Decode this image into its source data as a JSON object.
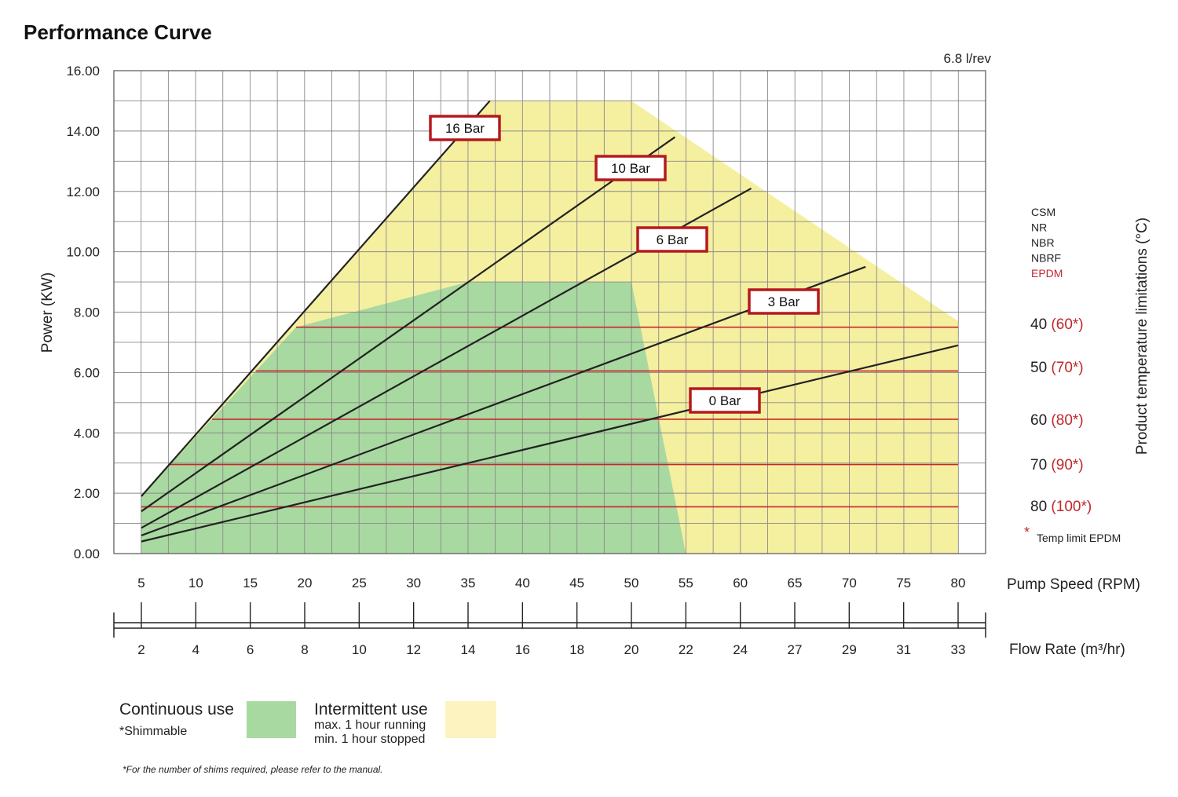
{
  "title": "Performance Curve",
  "displacement": "6.8 l/rev",
  "chart_data": {
    "type": "line",
    "title": "Performance Curve",
    "ylabel": "Power (KW)",
    "xlabel": "Pump Speed (RPM)",
    "x2label": "Flow Rate (m³/hr)",
    "ylim": [
      0,
      16
    ],
    "xlim": [
      5,
      80
    ],
    "y_ticks": [
      "0.00",
      "2.00",
      "4.00",
      "6.00",
      "8.00",
      "10.00",
      "12.00",
      "14.00",
      "16.00"
    ],
    "x_ticks": [
      "5",
      "10",
      "15",
      "20",
      "25",
      "30",
      "35",
      "40",
      "45",
      "50",
      "55",
      "60",
      "65",
      "70",
      "75",
      "80"
    ],
    "flow_ticks": [
      "2",
      "4",
      "6",
      "8",
      "10",
      "12",
      "14",
      "16",
      "18",
      "20",
      "22",
      "24",
      "27",
      "29",
      "31",
      "33"
    ],
    "grid": true,
    "series": [
      {
        "name": "16 Bar",
        "points": [
          [
            5,
            1.9
          ],
          [
            37,
            15.0
          ]
        ]
      },
      {
        "name": "10 Bar",
        "points": [
          [
            5,
            1.4
          ],
          [
            54,
            13.8
          ]
        ]
      },
      {
        "name": "6 Bar",
        "points": [
          [
            5,
            0.85
          ],
          [
            61,
            12.1
          ]
        ]
      },
      {
        "name": "3 Bar",
        "points": [
          [
            5,
            0.6
          ],
          [
            71.5,
            9.5
          ]
        ]
      },
      {
        "name": "0 Bar",
        "points": [
          [
            5,
            0.4
          ],
          [
            80,
            6.9
          ]
        ]
      }
    ],
    "regions": [
      {
        "name": "Intermittent use",
        "color": "#f5efa0",
        "points": [
          [
            5,
            0
          ],
          [
            5,
            1.9
          ],
          [
            37,
            15.0
          ],
          [
            50,
            15.0
          ],
          [
            80,
            7.7
          ],
          [
            80,
            0
          ]
        ]
      },
      {
        "name": "Continuous use",
        "color": "#a8d9a0",
        "points": [
          [
            5,
            0
          ],
          [
            5,
            1.9
          ],
          [
            19.2,
            7.5
          ],
          [
            35,
            9.0
          ],
          [
            50,
            9.0
          ],
          [
            55,
            0
          ]
        ]
      }
    ],
    "temperature_lines": [
      {
        "y": 7.5,
        "x_start": 19.2,
        "label": "40",
        "epdm": "(60*)"
      },
      {
        "y": 6.05,
        "x_start": 15.5,
        "label": "50",
        "epdm": "(70*)"
      },
      {
        "y": 4.45,
        "x_start": 11.5,
        "label": "60",
        "epdm": "(80*)"
      },
      {
        "y": 2.95,
        "x_start": 7.5,
        "label": "70",
        "epdm": "(90*)"
      },
      {
        "y": 1.55,
        "x_start": 5.0,
        "label": "80",
        "epdm": "(100*)"
      }
    ]
  },
  "materials": {
    "items": [
      "CSM",
      "NR",
      "NBR",
      "NBRF"
    ],
    "highlight": "EPDM",
    "axis_title": "Product temperature limitations (°C)",
    "epdm_note": "Temp limit EPDM",
    "asterisk": "*"
  },
  "legend": {
    "continuous_title": "Continuous use",
    "continuous_sub": "*Shimmable",
    "continuous_color": "#a8d9a0",
    "intermittent_title": "Intermittent use",
    "intermittent_line1": "max. 1 hour running",
    "intermittent_line2": "min. 1 hour stopped",
    "intermittent_color": "#fdf3c0"
  },
  "footnote": "*For the number of shims required, please refer to the manual."
}
